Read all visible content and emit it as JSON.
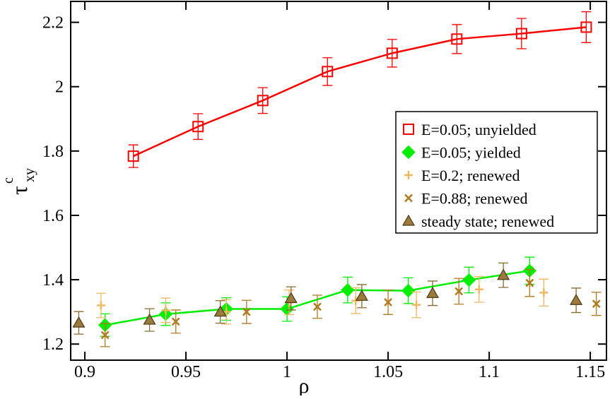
{
  "chart_data": {
    "type": "scatter",
    "xlabel": "ρ",
    "ylabel": {
      "symbol": "τ",
      "superscript": "c",
      "subscript": "xy"
    },
    "xlim": [
      0.893,
      1.158
    ],
    "ylim": [
      1.15,
      2.265
    ],
    "xticks": [
      0.9,
      0.95,
      1,
      1.05,
      1.1,
      1.15
    ],
    "yticks": [
      1.2,
      1.4,
      1.6,
      1.8,
      2,
      2.2
    ],
    "legend": "right",
    "series": [
      {
        "name": "E=0.05; unyielded",
        "color": "#ff0000",
        "marker": "square",
        "line": true,
        "x": [
          0.924,
          0.956,
          0.988,
          1.02,
          1.052,
          1.084,
          1.116,
          1.148
        ],
        "values": [
          1.784,
          1.876,
          1.957,
          2.047,
          2.104,
          2.148,
          2.165,
          2.185
        ],
        "errors": [
          0.035,
          0.04,
          0.04,
          0.043,
          0.043,
          0.045,
          0.047,
          0.048
        ]
      },
      {
        "name": "E=0.05; yielded",
        "color": "#00ee00",
        "marker": "diamond",
        "line": true,
        "x": [
          0.91,
          0.94,
          0.97,
          1.0,
          1.03,
          1.06,
          1.09,
          1.12
        ],
        "values": [
          1.259,
          1.293,
          1.309,
          1.309,
          1.368,
          1.366,
          1.399,
          1.428
        ],
        "errors": [
          0.035,
          0.035,
          0.035,
          0.038,
          0.04,
          0.04,
          0.04,
          0.042
        ]
      },
      {
        "name": "E=0.2; renewed",
        "color": "#f0b860",
        "marker": "plus",
        "line": false,
        "x": [
          0.908,
          0.94,
          0.97,
          1.001,
          1.034,
          1.064,
          1.095,
          1.127
        ],
        "values": [
          1.32,
          1.305,
          1.3,
          1.33,
          1.335,
          1.322,
          1.37,
          1.36
        ],
        "errors": [
          0.038,
          0.038,
          0.038,
          0.038,
          0.04,
          0.04,
          0.04,
          0.042
        ]
      },
      {
        "name": "E=0.88; renewed",
        "color": "#b07a20",
        "marker": "cross",
        "line": false,
        "x": [
          0.91,
          0.945,
          0.98,
          1.015,
          1.05,
          1.085,
          1.12,
          1.153
        ],
        "values": [
          1.228,
          1.27,
          1.3,
          1.316,
          1.33,
          1.364,
          1.39,
          1.325
        ],
        "errors": [
          0.036,
          0.036,
          0.036,
          0.036,
          0.038,
          0.04,
          0.042,
          0.036
        ]
      },
      {
        "name": "steady state; renewed",
        "color": "#9c7a3c",
        "marker": "triangle",
        "line": false,
        "x": [
          0.897,
          0.932,
          0.967,
          1.002,
          1.037,
          1.072,
          1.107,
          1.143
        ],
        "values": [
          1.266,
          1.275,
          1.3,
          1.342,
          1.349,
          1.358,
          1.414,
          1.336
        ],
        "errors": [
          0.035,
          0.035,
          0.035,
          0.036,
          0.036,
          0.038,
          0.038,
          0.038
        ]
      }
    ]
  }
}
